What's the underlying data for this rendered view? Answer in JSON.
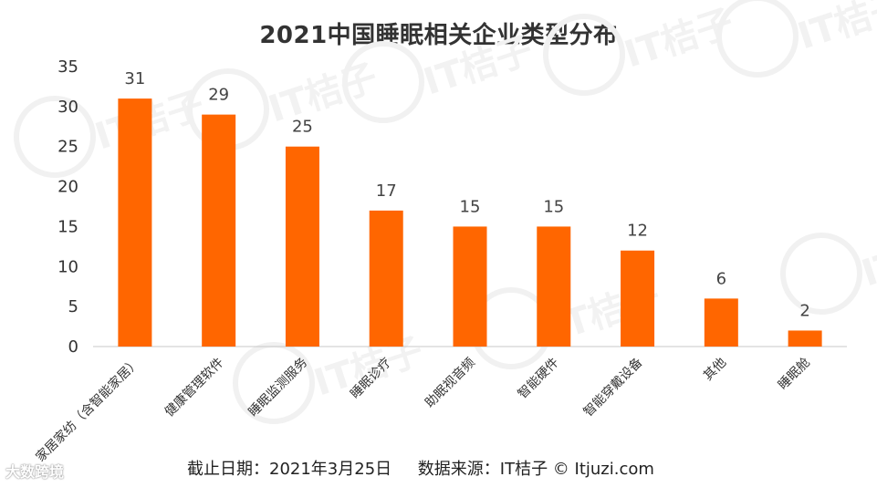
{
  "chart_data": {
    "type": "bar",
    "title": "2021中国睡眠相关企业类型分布",
    "categories": [
      "家居家纺（含智能家居）",
      "健康管理软件",
      "睡眠监测服务",
      "睡眠诊疗",
      "助眠视音频",
      "智能硬件",
      "智能穿戴设备",
      "其他",
      "睡眠舱"
    ],
    "values": [
      31,
      29,
      25,
      17,
      15,
      15,
      12,
      6,
      2
    ],
    "ylim": [
      0,
      35
    ],
    "yticks": [
      0,
      5,
      10,
      15,
      20,
      25,
      30,
      35
    ],
    "xlabel": "",
    "ylabel": "",
    "grid": false,
    "bar_color": "#FF6600",
    "data_labels": true
  },
  "footer": "截止日期：2021年3月25日     数据来源：IT桔子 © Itjuzi.com",
  "watermark": "IT桔子",
  "logo": "大数跨境"
}
